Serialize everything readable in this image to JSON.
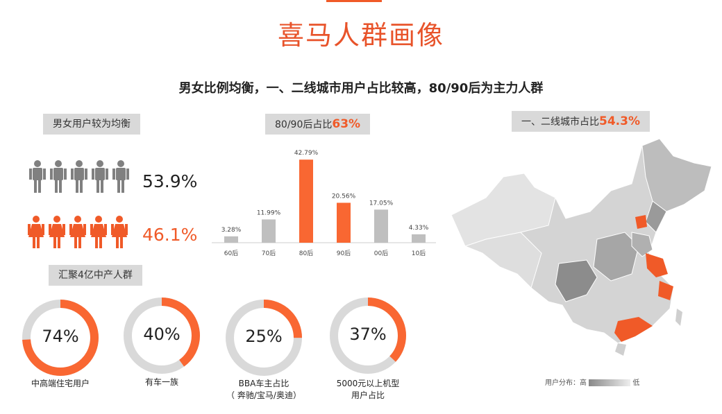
{
  "header": {
    "title": "喜马人群画像",
    "subtitle": "男女比例均衡，一、二线城市用户占比较高，80/90后为主力人群"
  },
  "gender": {
    "tag": "男女用户较为均衡",
    "male_pct": "53.9%",
    "female_pct": "46.1%",
    "male_icon": "male-person-icon",
    "female_icon": "female-person-icon",
    "male_color": "#808080",
    "female_color": "#f05a28"
  },
  "age": {
    "tag_prefix": "80/90后占比",
    "tag_value": "63%"
  },
  "chart_data": {
    "type": "bar",
    "categories": [
      "60后",
      "70后",
      "80后",
      "90后",
      "00后",
      "10后"
    ],
    "values": [
      3.28,
      11.99,
      42.79,
      20.56,
      17.05,
      4.33
    ],
    "labels": [
      "3.28%",
      "11.99%",
      "42.79%",
      "20.56%",
      "17.05%",
      "4.33%"
    ],
    "highlight": [
      "80后",
      "90后"
    ],
    "colors": {
      "normal": "#bfbfbf",
      "highlight": "#f96732"
    }
  },
  "middle": {
    "tag": "汇聚4亿中产人群",
    "donuts": [
      {
        "value": 74,
        "text": "74%",
        "label1": "中高端住宅用户",
        "label2": ""
      },
      {
        "value": 40,
        "text": "40%",
        "label1": "有车一族",
        "label2": ""
      },
      {
        "value": 25,
        "text": "25%",
        "label1": "BBA车主占比",
        "label2": "（ 奔驰/宝马/奥迪）"
      },
      {
        "value": 37,
        "text": "37%",
        "label1": "5000元以上机型",
        "label2": "用户占比"
      }
    ]
  },
  "map": {
    "tag_prefix": "一、二线城市占比",
    "tag_value": "54.3%",
    "legend_label": "用户分布：",
    "legend_high": "高",
    "legend_low": "低"
  }
}
